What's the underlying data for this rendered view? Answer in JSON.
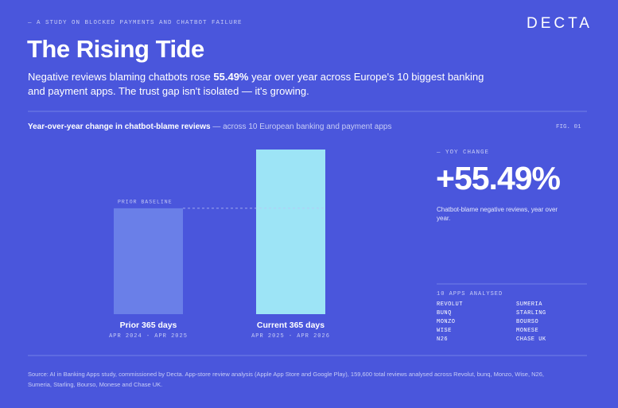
{
  "header": {
    "kicker": "— A STUDY ON BLOCKED PAYMENTS AND CHATBOT FAILURE",
    "logo": "DECTA",
    "title": "The Rising Tide",
    "subtitle_lead": "Negative reviews blaming chatbots rose ",
    "subtitle_highlight": "55.49%",
    "subtitle_rest": " year over year across Europe's 10 biggest banking and payment apps. The trust gap isn't isolated — it's growing."
  },
  "chart_data": {
    "type": "bar",
    "title": "Year-over-year change in chatbot-blame reviews",
    "subtitle": " — across 10 European banking and payment apps",
    "figure_label": "FIG. 01",
    "categories": [
      "Prior 365 days",
      "Current 365 days"
    ],
    "period_labels": [
      "APR 2024 - APR 2025",
      "APR 2025 - APR 2026"
    ],
    "values": [
      100,
      155.49
    ],
    "colors": [
      "#6a7fe8",
      "#9de4f6"
    ],
    "ylim": [
      0,
      160
    ],
    "annotation": "PRIOR BASELINE"
  },
  "side_panel": {
    "kicker": "— YOY CHANGE",
    "headline": "+55.49%",
    "caption": "Chatbot-blame negative reviews, year over year.",
    "apps_title": "10 APPS ANALYSED",
    "apps": [
      "REVOLUT",
      "SUMERIA",
      "BUNQ",
      "STARLING",
      "MONZO",
      "BOURSO",
      "WISE",
      "MONESE",
      "N26",
      "CHASE UK"
    ]
  },
  "footer": {
    "source": "Source: AI in Banking Apps study, commissioned by Decta. App-store review analysis (Apple App Store and Google Play), 159,600 total reviews analysed across Revolut, bunq, Monzo, Wise, N26, Sumeria, Starling, Bourso, Monese and Chase UK."
  }
}
